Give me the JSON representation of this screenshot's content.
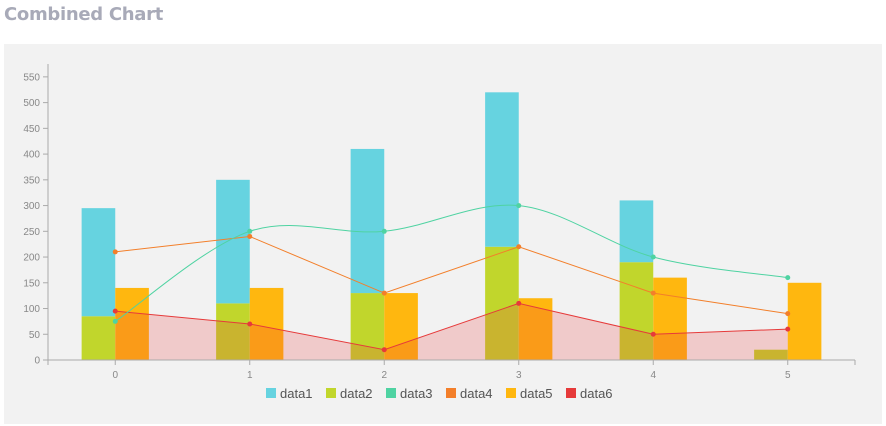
{
  "page": {
    "title": "Combined Chart"
  },
  "chart_data": {
    "type": "combined",
    "categories": [
      "0",
      "1",
      "2",
      "3",
      "4",
      "5"
    ],
    "x": [
      0,
      1,
      2,
      3,
      4,
      5
    ],
    "ylim": [
      0,
      575
    ],
    "yticks": [
      0,
      50,
      100,
      150,
      200,
      250,
      300,
      350,
      400,
      450,
      500,
      550
    ],
    "grid": false,
    "legend": "bottom",
    "series": [
      {
        "name": "data1",
        "type": "bar-stacked",
        "color": "#66d3e0",
        "values": [
          210,
          240,
          280,
          300,
          120,
          0
        ]
      },
      {
        "name": "data2",
        "type": "bar-stacked",
        "color": "#c1d62c",
        "values": [
          85,
          110,
          130,
          220,
          190,
          20
        ]
      },
      {
        "name": "data3",
        "type": "spline",
        "color": "#4fd3a2",
        "values": [
          75,
          250,
          250,
          300,
          200,
          160
        ]
      },
      {
        "name": "data4",
        "type": "line",
        "color": "#f37f2a",
        "values": [
          210,
          240,
          130,
          220,
          130,
          90
        ]
      },
      {
        "name": "data5",
        "type": "bar",
        "color": "#ffb70f",
        "values": [
          140,
          140,
          130,
          120,
          160,
          150
        ]
      },
      {
        "name": "data6",
        "type": "area",
        "color": "#e63a3a",
        "values": [
          95,
          70,
          20,
          110,
          50,
          60
        ]
      }
    ]
  }
}
